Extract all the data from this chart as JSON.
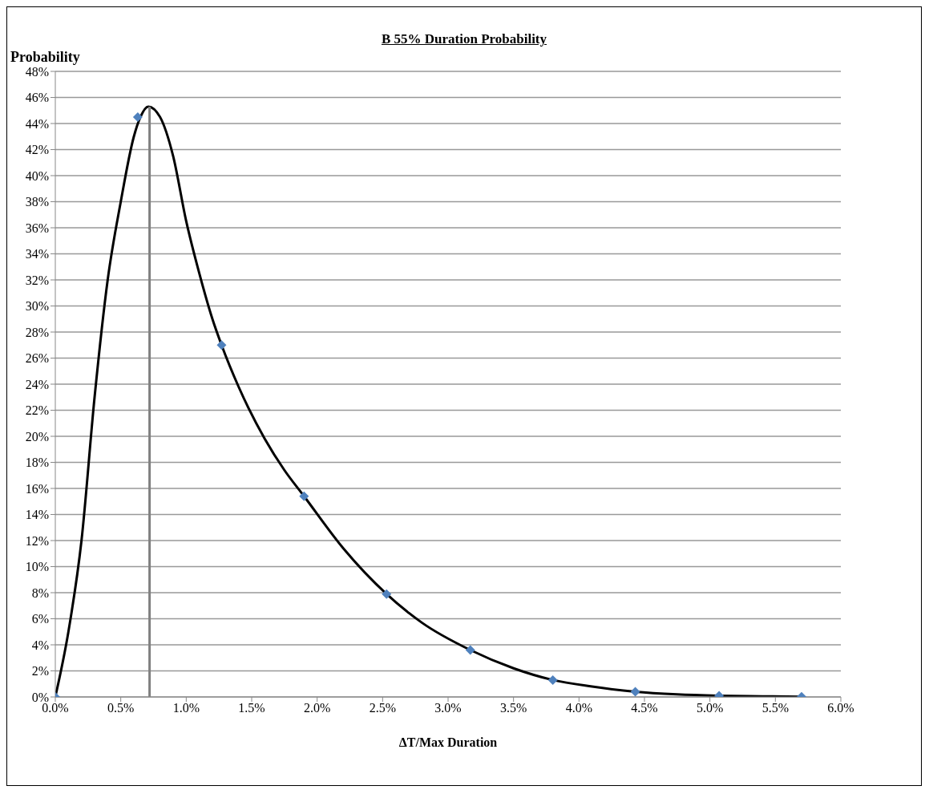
{
  "chart_data": {
    "type": "line",
    "title": "B 55% Duration Probability",
    "xlabel": "ΔT/Max Duration",
    "ylabel": "Probability",
    "xlim": [
      0,
      6
    ],
    "xticks": [
      {
        "value": 0,
        "label": "0.0%"
      },
      {
        "value": 0.5,
        "label": "0.5%"
      },
      {
        "value": 1,
        "label": "1.0%"
      },
      {
        "value": 1.5,
        "label": "1.5%"
      },
      {
        "value": 2,
        "label": "2.0%"
      },
      {
        "value": 2.5,
        "label": "2.5%"
      },
      {
        "value": 3,
        "label": "3.0%"
      },
      {
        "value": 3.5,
        "label": "3.5%"
      },
      {
        "value": 4,
        "label": "4.0%"
      },
      {
        "value": 4.5,
        "label": "4.5%"
      },
      {
        "value": 5,
        "label": "5.0%"
      },
      {
        "value": 5.5,
        "label": "5.5%"
      },
      {
        "value": 6,
        "label": "6.0%"
      }
    ],
    "ylim": [
      0,
      48
    ],
    "yticks": [
      {
        "value": 0,
        "label": "0%"
      },
      {
        "value": 2,
        "label": "2%"
      },
      {
        "value": 4,
        "label": "4%"
      },
      {
        "value": 6,
        "label": "6%"
      },
      {
        "value": 8,
        "label": "8%"
      },
      {
        "value": 10,
        "label": "10%"
      },
      {
        "value": 12,
        "label": "12%"
      },
      {
        "value": 14,
        "label": "14%"
      },
      {
        "value": 16,
        "label": "16%"
      },
      {
        "value": 18,
        "label": "18%"
      },
      {
        "value": 20,
        "label": "20%"
      },
      {
        "value": 22,
        "label": "22%"
      },
      {
        "value": 24,
        "label": "24%"
      },
      {
        "value": 26,
        "label": "26%"
      },
      {
        "value": 28,
        "label": "28%"
      },
      {
        "value": 30,
        "label": "30%"
      },
      {
        "value": 32,
        "label": "32%"
      },
      {
        "value": 34,
        "label": "34%"
      },
      {
        "value": 36,
        "label": "36%"
      },
      {
        "value": 38,
        "label": "38%"
      },
      {
        "value": 40,
        "label": "40%"
      },
      {
        "value": 42,
        "label": "42%"
      },
      {
        "value": 44,
        "label": "44%"
      },
      {
        "value": 46,
        "label": "46%"
      },
      {
        "value": 48,
        "label": "48%"
      }
    ],
    "grid": "y",
    "series": [
      {
        "color": "#000000",
        "marker": "none",
        "line_style": "solid",
        "x": [
          0,
          0.1,
          0.2,
          0.3,
          0.4,
          0.5,
          0.6,
          0.65,
          0.71,
          0.8,
          0.9,
          1.0,
          1.1,
          1.2,
          1.27,
          1.4,
          1.6,
          1.75,
          1.9,
          2.2,
          2.53,
          2.8,
          3.17,
          3.5,
          3.8,
          4.1,
          4.43,
          4.75,
          5.07,
          5.4,
          5.7
        ],
        "values": [
          0,
          5,
          12,
          23,
          32,
          38,
          43,
          44.5,
          45.3,
          44.5,
          41.5,
          36.5,
          32.5,
          29,
          27,
          23.8,
          19.8,
          17.4,
          15.4,
          11.4,
          7.9,
          5.7,
          3.6,
          2.2,
          1.3,
          0.8,
          0.4,
          0.2,
          0.1,
          0.05,
          0.02
        ]
      },
      {
        "color": "#808080",
        "marker": "none",
        "line_style": "solid",
        "x": [
          0.72,
          0.72
        ],
        "values": [
          0,
          45.3
        ]
      },
      {
        "type": "scatter",
        "color": "#4f81bd",
        "marker": "diamond",
        "x": [
          0,
          0.63,
          1.27,
          1.9,
          2.53,
          3.17,
          3.8,
          4.43,
          5.07,
          5.7
        ],
        "values": [
          0,
          44.5,
          27,
          15.4,
          7.9,
          3.6,
          1.3,
          0.4,
          0.1,
          0.02
        ]
      }
    ]
  }
}
